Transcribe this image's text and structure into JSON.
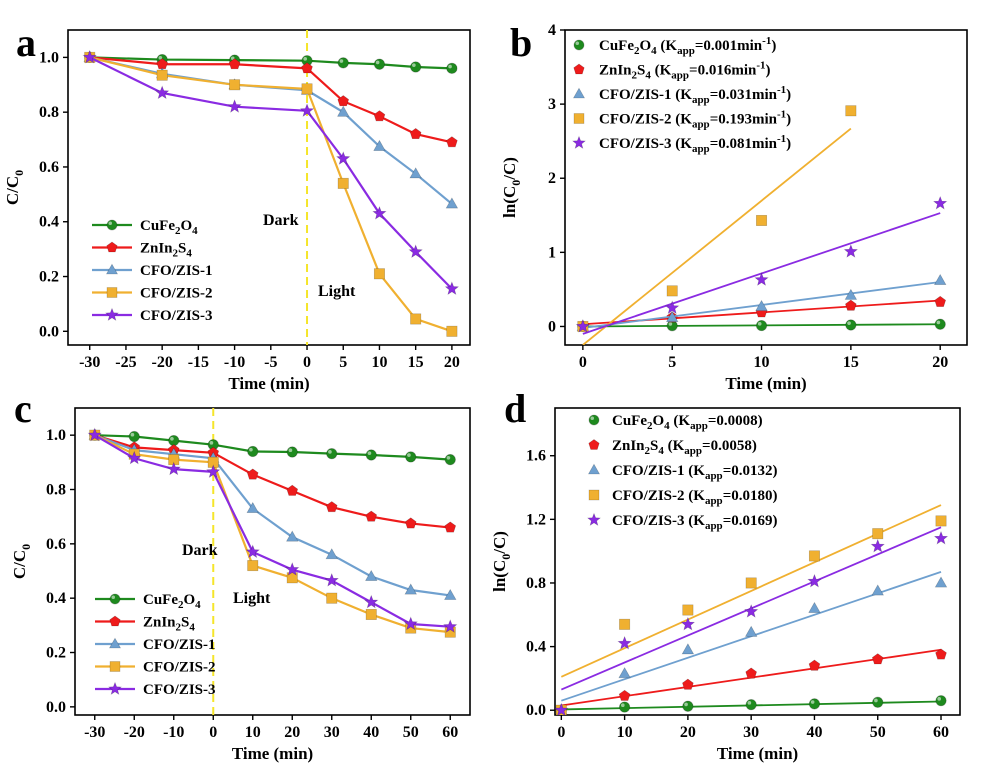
{
  "chart_data": [
    {
      "panel": "a",
      "type": "line",
      "xlabel": "Time (min)",
      "ylabel": "C/C0",
      "xlim": [
        -33,
        22.5
      ],
      "ylim": [
        -0.05,
        1.1
      ],
      "xticks": [
        -30,
        -25,
        -20,
        -15,
        -10,
        -5,
        0,
        5,
        10,
        15,
        20
      ],
      "yticks": [
        0.0,
        0.2,
        0.4,
        0.6,
        0.8,
        1.0
      ],
      "divider_x": 0,
      "annotations": [
        {
          "text": "Dark",
          "x": -5.5,
          "y": 0.35
        },
        {
          "text": "Light",
          "x": 0.5,
          "y": 0.13
        }
      ],
      "legend_position": "bottom-left",
      "series": [
        {
          "name": "CuFe2O4",
          "color": "#1e8a1e",
          "marker": "circle",
          "x": [
            -30,
            -20,
            -10,
            0,
            5,
            10,
            15,
            20
          ],
          "y": [
            1.0,
            0.992,
            0.99,
            0.988,
            0.98,
            0.975,
            0.965,
            0.96
          ]
        },
        {
          "name": "ZnIn2S4",
          "color": "#ee1b1b",
          "marker": "pentagon",
          "x": [
            -30,
            -20,
            -10,
            0,
            5,
            10,
            15,
            20
          ],
          "y": [
            1.0,
            0.975,
            0.975,
            0.96,
            0.84,
            0.785,
            0.72,
            0.69
          ]
        },
        {
          "name": "CFO/ZIS-1",
          "color": "#6fa0cf",
          "marker": "triangle",
          "x": [
            -30,
            -20,
            -10,
            0,
            5,
            10,
            15,
            20
          ],
          "y": [
            1.0,
            0.94,
            0.9,
            0.88,
            0.8,
            0.675,
            0.575,
            0.465
          ]
        },
        {
          "name": "CFO/ZIS-2",
          "color": "#f0b030",
          "marker": "square",
          "x": [
            -30,
            -20,
            -10,
            0,
            5,
            10,
            15,
            20
          ],
          "y": [
            1.0,
            0.935,
            0.9,
            0.885,
            0.54,
            0.21,
            0.045,
            0.0
          ]
        },
        {
          "name": "CFO/ZIS-3",
          "color": "#8a2be2",
          "marker": "star",
          "x": [
            -30,
            -20,
            -10,
            0,
            5,
            10,
            15,
            20
          ],
          "y": [
            1.0,
            0.87,
            0.82,
            0.805,
            0.63,
            0.43,
            0.29,
            0.155
          ]
        }
      ]
    },
    {
      "panel": "b",
      "type": "scatter",
      "xlabel": "Time (min)",
      "ylabel": "ln(C0/C)",
      "xlim": [
        -1,
        21.5
      ],
      "ylim": [
        -0.25,
        4
      ],
      "xticks": [
        0,
        5,
        10,
        15,
        20
      ],
      "yticks": [
        0,
        1,
        2,
        3,
        4
      ],
      "legend_position": "top-left",
      "series": [
        {
          "name": "CuFe2O4 (Kapp=0.001min-1)",
          "color": "#1e8a1e",
          "marker": "circle",
          "x": [
            0,
            5,
            10,
            15,
            20
          ],
          "y": [
            0,
            0.01,
            0.012,
            0.02,
            0.03
          ],
          "fit": [
            [
              0,
              0.0
            ],
            [
              20,
              0.03
            ]
          ]
        },
        {
          "name": "ZnIn2S4 (Kapp=0.016min-1)",
          "color": "#ee1b1b",
          "marker": "pentagon",
          "x": [
            0,
            5,
            10,
            15,
            20
          ],
          "y": [
            0,
            0.12,
            0.19,
            0.28,
            0.33
          ],
          "fit": [
            [
              0,
              0.03
            ],
            [
              20,
              0.35
            ]
          ]
        },
        {
          "name": "CFO/ZIS-1 (Kapp=0.031min-1)",
          "color": "#6fa0cf",
          "marker": "triangle",
          "x": [
            0,
            5,
            10,
            15,
            20
          ],
          "y": [
            0,
            0.12,
            0.27,
            0.42,
            0.62
          ],
          "fit": [
            [
              0,
              -0.02
            ],
            [
              20,
              0.6
            ]
          ]
        },
        {
          "name": "CFO/ZIS-2 (Kapp=0.193min-1)",
          "color": "#f0b030",
          "marker": "square",
          "x": [
            0,
            5,
            10,
            15,
            20
          ],
          "y": [
            0,
            0.48,
            1.43,
            2.91,
            null
          ],
          "fit": [
            [
              0,
              -0.25
            ],
            [
              15,
              2.67
            ]
          ]
        },
        {
          "name": "CFO/ZIS-3 (Kapp=0.081min-1)",
          "color": "#8a2be2",
          "marker": "star",
          "x": [
            0,
            5,
            10,
            15,
            20
          ],
          "y": [
            0,
            0.25,
            0.63,
            1.01,
            1.66
          ],
          "fit": [
            [
              0,
              -0.1
            ],
            [
              20,
              1.53
            ]
          ]
        }
      ]
    },
    {
      "panel": "c",
      "type": "line",
      "xlabel": "Time (min)",
      "ylabel": "C/C0",
      "xlim": [
        -35,
        65
      ],
      "ylim": [
        -0.03,
        1.1
      ],
      "xticks": [
        -30,
        -20,
        -10,
        0,
        10,
        20,
        30,
        40,
        50,
        60
      ],
      "yticks": [
        0.0,
        0.2,
        0.4,
        0.6,
        0.8,
        1.0
      ],
      "divider_x": 0,
      "annotations": [
        {
          "text": "Dark",
          "x": -16,
          "y": 0.56
        },
        {
          "text": "Light",
          "x": 6,
          "y": 0.41
        }
      ],
      "legend_position": "bottom-left",
      "series": [
        {
          "name": "CuFe2O4",
          "color": "#1e8a1e",
          "marker": "circle",
          "x": [
            -30,
            -20,
            -10,
            0,
            10,
            20,
            30,
            40,
            50,
            60
          ],
          "y": [
            1.0,
            0.995,
            0.98,
            0.965,
            0.94,
            0.938,
            0.932,
            0.927,
            0.92,
            0.91
          ]
        },
        {
          "name": "ZnIn2S4",
          "color": "#ee1b1b",
          "marker": "pentagon",
          "x": [
            -30,
            -20,
            -10,
            0,
            10,
            20,
            30,
            40,
            50,
            60
          ],
          "y": [
            1.0,
            0.955,
            0.945,
            0.935,
            0.855,
            0.795,
            0.735,
            0.7,
            0.675,
            0.66
          ]
        },
        {
          "name": "CFO/ZIS-1",
          "color": "#6fa0cf",
          "marker": "triangle",
          "x": [
            -30,
            -20,
            -10,
            0,
            10,
            20,
            30,
            40,
            50,
            60
          ],
          "y": [
            1.0,
            0.945,
            0.93,
            0.915,
            0.73,
            0.625,
            0.56,
            0.48,
            0.43,
            0.41
          ]
        },
        {
          "name": "CFO/ZIS-2",
          "color": "#f0b030",
          "marker": "square",
          "x": [
            -30,
            -20,
            -10,
            0,
            10,
            20,
            30,
            40,
            50,
            60
          ],
          "y": [
            1.0,
            0.93,
            0.91,
            0.9,
            0.52,
            0.475,
            0.4,
            0.34,
            0.29,
            0.275
          ]
        },
        {
          "name": "CFO/ZIS-3",
          "color": "#8a2be2",
          "marker": "star",
          "x": [
            -30,
            -20,
            -10,
            0,
            10,
            20,
            30,
            40,
            50,
            60
          ],
          "y": [
            1.0,
            0.915,
            0.875,
            0.865,
            0.57,
            0.505,
            0.465,
            0.385,
            0.305,
            0.295
          ]
        }
      ]
    },
    {
      "panel": "d",
      "type": "scatter",
      "xlabel": "Time (min)",
      "ylabel": "ln(C0/C)",
      "xlim": [
        -1,
        63
      ],
      "ylim": [
        -0.03,
        1.9
      ],
      "xticks": [
        0,
        10,
        20,
        30,
        40,
        50,
        60
      ],
      "yticks": [
        0.0,
        0.4,
        0.8,
        1.2,
        1.6
      ],
      "legend_position": "top-left",
      "series": [
        {
          "name": "CuFe2O4 (Kapp=0.0008)",
          "color": "#1e8a1e",
          "marker": "circle",
          "x": [
            0,
            10,
            20,
            30,
            40,
            50,
            60
          ],
          "y": [
            0,
            0.02,
            0.025,
            0.035,
            0.04,
            0.05,
            0.06
          ],
          "fit": [
            [
              0,
              0.005
            ],
            [
              60,
              0.055
            ]
          ]
        },
        {
          "name": "ZnIn2S4 (Kapp=0.0058)",
          "color": "#ee1b1b",
          "marker": "pentagon",
          "x": [
            0,
            10,
            20,
            30,
            40,
            50,
            60
          ],
          "y": [
            0,
            0.09,
            0.16,
            0.23,
            0.28,
            0.32,
            0.35
          ],
          "fit": [
            [
              0,
              0.03
            ],
            [
              60,
              0.38
            ]
          ]
        },
        {
          "name": "CFO/ZIS-1 (Kapp=0.0132)",
          "color": "#6fa0cf",
          "marker": "triangle",
          "x": [
            0,
            10,
            20,
            30,
            40,
            50,
            60
          ],
          "y": [
            0,
            0.23,
            0.38,
            0.49,
            0.64,
            0.75,
            0.8
          ],
          "fit": [
            [
              0,
              0.06
            ],
            [
              60,
              0.87
            ]
          ]
        },
        {
          "name": "CFO/ZIS-2 (Kapp=0.0180)",
          "color": "#f0b030",
          "marker": "square",
          "x": [
            0,
            10,
            20,
            30,
            40,
            50,
            60
          ],
          "y": [
            0,
            0.54,
            0.63,
            0.8,
            0.97,
            1.11,
            1.19
          ],
          "fit": [
            [
              0,
              0.21
            ],
            [
              60,
              1.29
            ]
          ]
        },
        {
          "name": "CFO/ZIS-3 (Kapp=0.0169)",
          "color": "#8a2be2",
          "marker": "star",
          "x": [
            0,
            10,
            20,
            30,
            40,
            50,
            60
          ],
          "y": [
            0,
            0.42,
            0.54,
            0.62,
            0.81,
            1.03,
            1.08
          ],
          "fit": [
            [
              0,
              0.13
            ],
            [
              60,
              1.15
            ]
          ]
        }
      ]
    }
  ],
  "panel_labels": [
    "a",
    "b",
    "c",
    "d"
  ],
  "legends": {
    "a": [
      {
        "base": "CuFe",
        "s1": "2",
        "mid": "O",
        "s2": "4",
        "tail": ""
      },
      {
        "base": "ZnIn",
        "s1": "2",
        "mid": "S",
        "s2": "4",
        "tail": ""
      },
      {
        "base": "CFO/ZIS-1"
      },
      {
        "base": "CFO/ZIS-2"
      },
      {
        "base": "CFO/ZIS-3"
      }
    ],
    "b": [
      {
        "base": "CuFe",
        "s1": "2",
        "mid": "O",
        "s2": "4",
        "k": "0.001",
        "unit": "min",
        "exp": "-1"
      },
      {
        "base": "ZnIn",
        "s1": "2",
        "mid": "S",
        "s2": "4",
        "k": "0.016",
        "unit": "min",
        "exp": "-1"
      },
      {
        "base": "CFO/ZIS-1",
        "k": "0.031",
        "unit": "min",
        "exp": "-1"
      },
      {
        "base": "CFO/ZIS-2",
        "k": "0.193",
        "unit": "min",
        "exp": "-1"
      },
      {
        "base": "CFO/ZIS-3",
        "k": "0.081",
        "unit": "min",
        "exp": "-1"
      }
    ],
    "c": [
      {
        "base": "CuFe",
        "s1": "2",
        "mid": "O",
        "s2": "4",
        "tail": ""
      },
      {
        "base": "ZnIn",
        "s1": "2",
        "mid": "S",
        "s2": "4",
        "tail": ""
      },
      {
        "base": "CFO/ZIS-1"
      },
      {
        "base": "CFO/ZIS-2"
      },
      {
        "base": "CFO/ZIS-3"
      }
    ],
    "d": [
      {
        "base": "CuFe",
        "s1": "2",
        "mid": "O",
        "s2": "4",
        "k": "0.0008"
      },
      {
        "base": "ZnIn",
        "s1": "2",
        "mid": "S",
        "s2": "4",
        "k": "0.0058"
      },
      {
        "base": "CFO/ZIS-1",
        "k": "0.0132"
      },
      {
        "base": "CFO/ZIS-2",
        "k": "0.0180"
      },
      {
        "base": "CFO/ZIS-3",
        "k": "0.0169"
      }
    ]
  },
  "kapp_label": {
    "K": "K",
    "sub": "app"
  },
  "axis_text": {
    "time": "Time (min)",
    "cc0_main": "C/C",
    "cc0_sub": "0",
    "ln_pre": "ln(C",
    "ln_sub": "0",
    "ln_post": "/C)"
  },
  "divider_color": "#f5e52a"
}
